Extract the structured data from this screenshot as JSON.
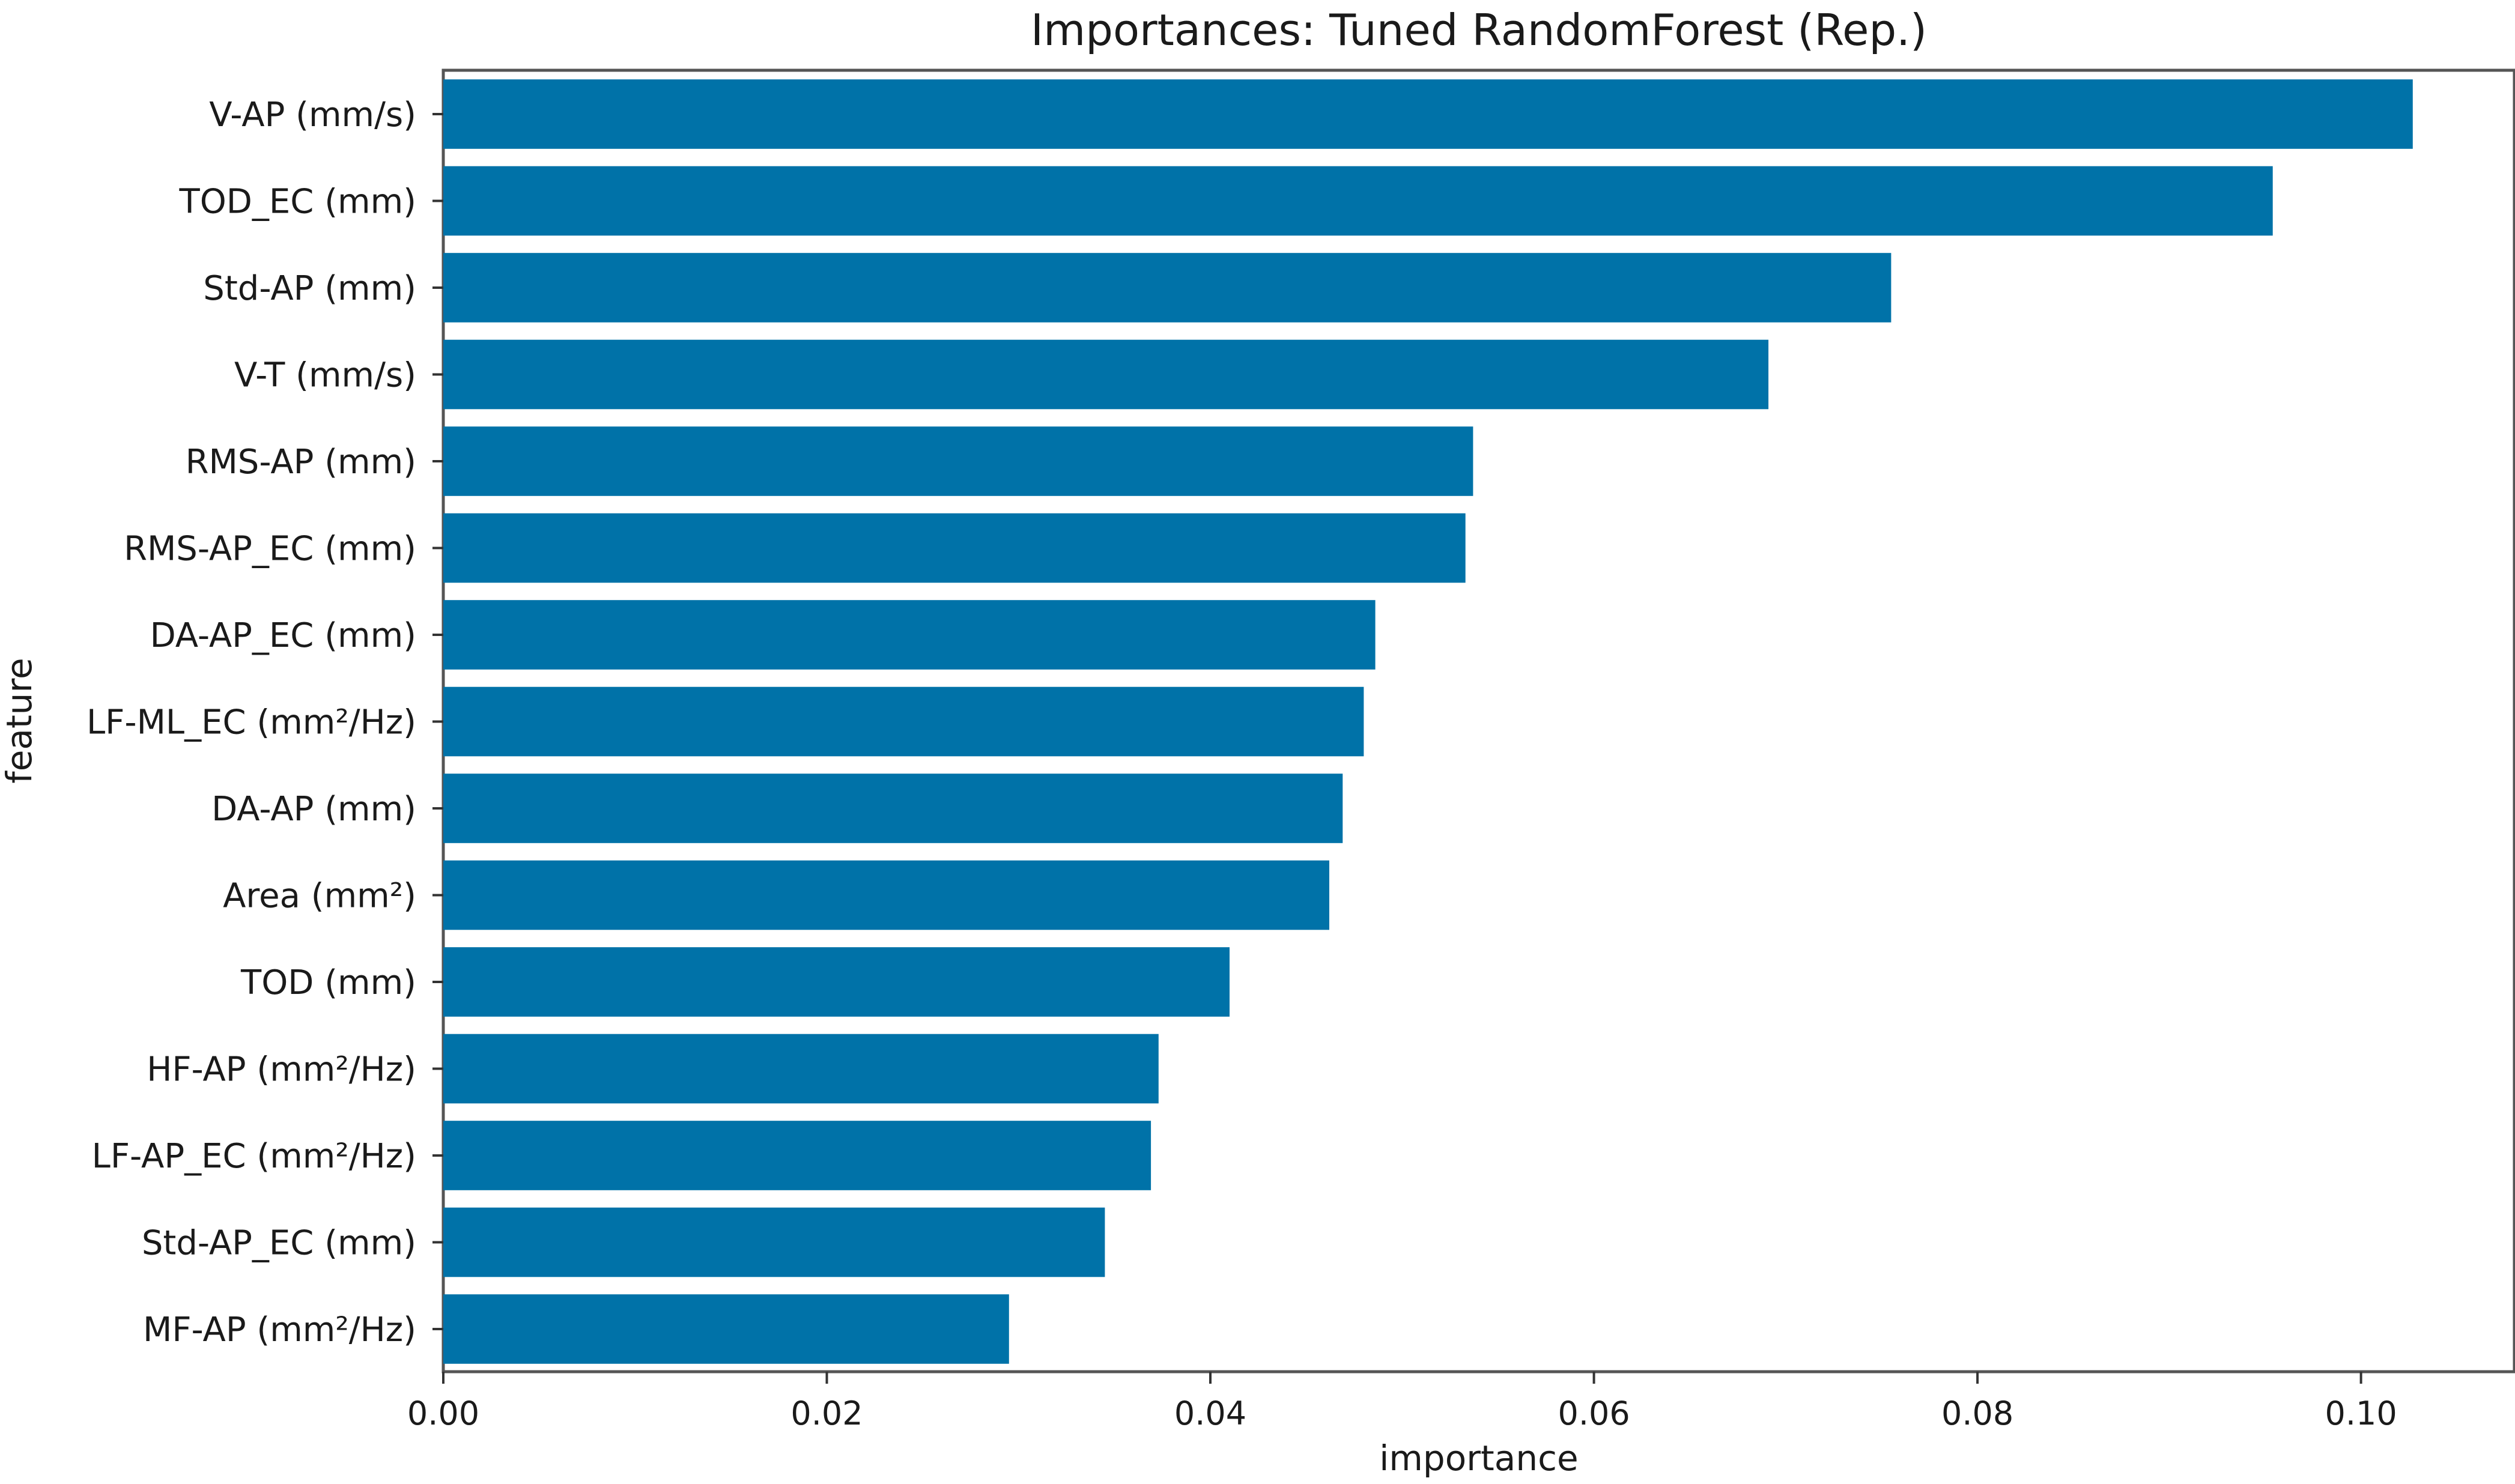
{
  "chart_data": {
    "type": "bar",
    "orientation": "horizontal",
    "title": "Importances: Tuned RandomForest (Rep.)",
    "xlabel": "importance",
    "ylabel": "feature",
    "categories": [
      "V-AP (mm/s)",
      "TOD_EC (mm)",
      "Std-AP (mm)",
      "V-T (mm/s)",
      "RMS-AP (mm)",
      "RMS-AP_EC (mm)",
      "DA-AP_EC (mm)",
      "LF-ML_EC (mm²/Hz)",
      "DA-AP (mm)",
      "Area (mm²)",
      "TOD (mm)",
      "HF-AP (mm²/Hz)",
      "LF-AP_EC (mm²/Hz)",
      "Std-AP_EC (mm)",
      "MF-AP (mm²/Hz)"
    ],
    "values": [
      0.1027,
      0.0954,
      0.0755,
      0.0691,
      0.0537,
      0.0533,
      0.0486,
      0.048,
      0.0469,
      0.0462,
      0.041,
      0.0373,
      0.0369,
      0.0345,
      0.0295
    ],
    "xlim": [
      0,
      0.108
    ],
    "xticks": [
      "0.00",
      "0.02",
      "0.04",
      "0.06",
      "0.08",
      "0.10"
    ],
    "xtick_values": [
      0,
      0.02,
      0.04,
      0.06,
      0.08,
      0.1
    ],
    "grid": false,
    "bar_color": "#0072a8",
    "frame_color": "#555555"
  }
}
